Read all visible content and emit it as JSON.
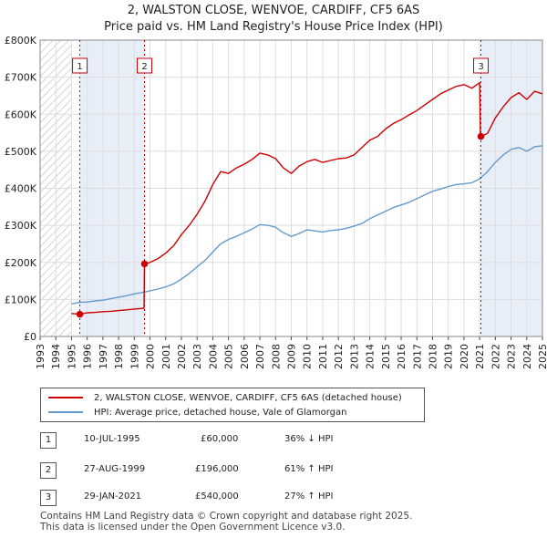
{
  "title": "2, WALSTON CLOSE, WENVOE, CARDIFF, CF5 6AS",
  "subtitle": "Price paid vs. HM Land Registry's House Price Index (HPI)",
  "chart_data": {
    "type": "line",
    "title": "2, WALSTON CLOSE, WENVOE, CARDIFF, CF5 6AS",
    "subtitle": "Price paid vs. HM Land Registry's House Price Index (HPI)",
    "xlabel": "",
    "ylabel": "",
    "xlim": [
      1993,
      2025
    ],
    "ylim": [
      0,
      800000
    ],
    "y_ticks": [
      0,
      100000,
      200000,
      300000,
      400000,
      500000,
      600000,
      700000,
      800000
    ],
    "y_tick_labels": [
      "£0",
      "£100K",
      "£200K",
      "£300K",
      "£400K",
      "£500K",
      "£600K",
      "£700K",
      "£800K"
    ],
    "x_ticks": [
      1993,
      1994,
      1995,
      1996,
      1997,
      1998,
      1999,
      2000,
      2001,
      2002,
      2003,
      2004,
      2005,
      2006,
      2007,
      2008,
      2009,
      2010,
      2011,
      2012,
      2013,
      2014,
      2015,
      2016,
      2017,
      2018,
      2019,
      2020,
      2021,
      2022,
      2023,
      2024,
      2025
    ],
    "x_tick_labels": [
      "1993",
      "1994",
      "1995",
      "1996",
      "1997",
      "1998",
      "1999",
      "2000",
      "2001",
      "2002",
      "2003",
      "2004",
      "2005",
      "2006",
      "2007",
      "2008",
      "2009",
      "2010",
      "2011",
      "2012",
      "2013",
      "2014",
      "2015",
      "2016",
      "2017",
      "2018",
      "2019",
      "2020",
      "2021",
      "2022",
      "2023",
      "2024",
      "2025"
    ],
    "hatched_range_before": 1995.0,
    "grid": true,
    "series": [
      {
        "name": "2, WALSTON CLOSE, WENVOE, CARDIFF, CF5 6AS (detached house)",
        "color": "#cc0000",
        "points": [
          [
            1995.0,
            62000
          ],
          [
            1995.53,
            60000
          ],
          [
            1996.0,
            64000
          ],
          [
            1996.5,
            65000
          ],
          [
            1997.0,
            67000
          ],
          [
            1997.5,
            68000
          ],
          [
            1998.0,
            70000
          ],
          [
            1998.5,
            72000
          ],
          [
            1999.0,
            74000
          ],
          [
            1999.62,
            76000
          ],
          [
            1999.65,
            196000
          ],
          [
            2000.0,
            200000
          ],
          [
            2000.5,
            210000
          ],
          [
            2001.0,
            225000
          ],
          [
            2001.5,
            245000
          ],
          [
            2002.0,
            275000
          ],
          [
            2002.5,
            300000
          ],
          [
            2003.0,
            330000
          ],
          [
            2003.5,
            365000
          ],
          [
            2004.0,
            410000
          ],
          [
            2004.5,
            445000
          ],
          [
            2005.0,
            440000
          ],
          [
            2005.5,
            455000
          ],
          [
            2006.0,
            465000
          ],
          [
            2006.5,
            478000
          ],
          [
            2007.0,
            495000
          ],
          [
            2007.5,
            490000
          ],
          [
            2008.0,
            480000
          ],
          [
            2008.5,
            455000
          ],
          [
            2009.0,
            440000
          ],
          [
            2009.5,
            460000
          ],
          [
            2010.0,
            472000
          ],
          [
            2010.5,
            478000
          ],
          [
            2011.0,
            470000
          ],
          [
            2011.5,
            475000
          ],
          [
            2012.0,
            480000
          ],
          [
            2012.5,
            482000
          ],
          [
            2013.0,
            490000
          ],
          [
            2013.5,
            510000
          ],
          [
            2014.0,
            530000
          ],
          [
            2014.5,
            540000
          ],
          [
            2015.0,
            560000
          ],
          [
            2015.5,
            575000
          ],
          [
            2016.0,
            585000
          ],
          [
            2016.5,
            598000
          ],
          [
            2017.0,
            610000
          ],
          [
            2017.5,
            625000
          ],
          [
            2018.0,
            640000
          ],
          [
            2018.5,
            655000
          ],
          [
            2019.0,
            665000
          ],
          [
            2019.5,
            675000
          ],
          [
            2020.0,
            680000
          ],
          [
            2020.5,
            670000
          ],
          [
            2021.0,
            685000
          ],
          [
            2021.05,
            545000
          ],
          [
            2021.08,
            540000
          ],
          [
            2021.5,
            548000
          ],
          [
            2022.0,
            590000
          ],
          [
            2022.5,
            620000
          ],
          [
            2023.0,
            645000
          ],
          [
            2023.5,
            658000
          ],
          [
            2024.0,
            640000
          ],
          [
            2024.5,
            662000
          ],
          [
            2025.0,
            655000
          ]
        ]
      },
      {
        "name": "HPI: Average price, detached house, Vale of Glamorgan",
        "color": "#6699cc",
        "points": [
          [
            1995.0,
            88000
          ],
          [
            1995.5,
            92000
          ],
          [
            1996.0,
            93000
          ],
          [
            1996.5,
            96000
          ],
          [
            1997.0,
            98000
          ],
          [
            1997.5,
            102000
          ],
          [
            1998.0,
            106000
          ],
          [
            1998.5,
            110000
          ],
          [
            1999.0,
            115000
          ],
          [
            1999.65,
            120000
          ],
          [
            2000.0,
            123000
          ],
          [
            2000.5,
            128000
          ],
          [
            2001.0,
            134000
          ],
          [
            2001.5,
            142000
          ],
          [
            2002.0,
            155000
          ],
          [
            2002.5,
            170000
          ],
          [
            2003.0,
            188000
          ],
          [
            2003.5,
            205000
          ],
          [
            2004.0,
            228000
          ],
          [
            2004.5,
            250000
          ],
          [
            2005.0,
            262000
          ],
          [
            2005.5,
            270000
          ],
          [
            2006.0,
            280000
          ],
          [
            2006.5,
            290000
          ],
          [
            2007.0,
            302000
          ],
          [
            2007.5,
            300000
          ],
          [
            2008.0,
            295000
          ],
          [
            2008.5,
            280000
          ],
          [
            2009.0,
            270000
          ],
          [
            2009.5,
            278000
          ],
          [
            2010.0,
            288000
          ],
          [
            2010.5,
            285000
          ],
          [
            2011.0,
            282000
          ],
          [
            2011.5,
            286000
          ],
          [
            2012.0,
            288000
          ],
          [
            2012.5,
            292000
          ],
          [
            2013.0,
            298000
          ],
          [
            2013.5,
            305000
          ],
          [
            2014.0,
            318000
          ],
          [
            2014.5,
            328000
          ],
          [
            2015.0,
            338000
          ],
          [
            2015.5,
            348000
          ],
          [
            2016.0,
            355000
          ],
          [
            2016.5,
            362000
          ],
          [
            2017.0,
            372000
          ],
          [
            2017.5,
            382000
          ],
          [
            2018.0,
            392000
          ],
          [
            2018.5,
            398000
          ],
          [
            2019.0,
            405000
          ],
          [
            2019.5,
            410000
          ],
          [
            2020.0,
            412000
          ],
          [
            2020.5,
            415000
          ],
          [
            2021.0,
            425000
          ],
          [
            2021.5,
            445000
          ],
          [
            2022.0,
            470000
          ],
          [
            2022.5,
            490000
          ],
          [
            2023.0,
            505000
          ],
          [
            2023.5,
            510000
          ],
          [
            2024.0,
            500000
          ],
          [
            2024.5,
            512000
          ],
          [
            2025.0,
            515000
          ]
        ]
      }
    ],
    "transactions": [
      {
        "id": "1",
        "x": 1995.53,
        "price": 60000
      },
      {
        "id": "2",
        "x": 1999.65,
        "price": 196000
      },
      {
        "id": "3",
        "x": 2021.08,
        "price": 540000
      }
    ]
  },
  "legend": {
    "property_label": "2, WALSTON CLOSE, WENVOE, CARDIFF, CF5 6AS (detached house)",
    "hpi_label": "HPI: Average price, detached house, Vale of Glamorgan"
  },
  "transactions_table": [
    {
      "id": "1",
      "date": "10-JUL-1995",
      "price": "£60,000",
      "change": "36% ↓ HPI"
    },
    {
      "id": "2",
      "date": "27-AUG-1999",
      "price": "£196,000",
      "change": "61% ↑ HPI"
    },
    {
      "id": "3",
      "date": "29-JAN-2021",
      "price": "£540,000",
      "change": "27% ↑ HPI"
    }
  ],
  "footer": {
    "line1": "Contains HM Land Registry data © Crown copyright and database right 2025.",
    "line2": "This data is licensed under the Open Government Licence v3.0."
  }
}
